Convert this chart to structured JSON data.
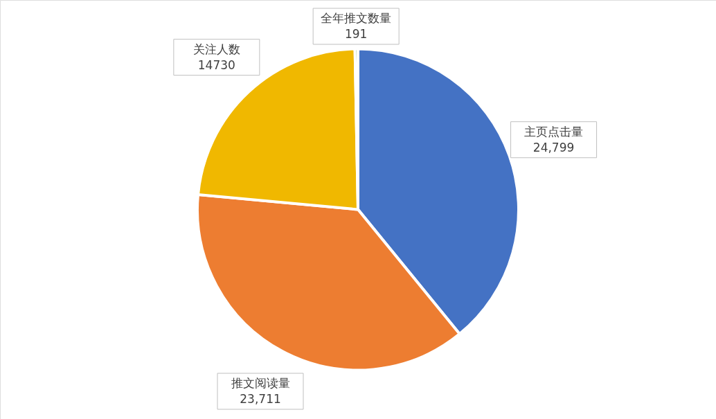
{
  "chart_data": {
    "type": "pie",
    "categories": [
      "主页点击量",
      "推文阅读量",
      "关注人数",
      "全年推文数量"
    ],
    "values": [
      24799,
      23711,
      14730,
      191
    ],
    "value_labels": [
      "24,799",
      "23,711",
      "14730",
      "191"
    ],
    "colors": [
      "#4472c4",
      "#ed7d31",
      "#f0b800",
      "#70ad47"
    ]
  }
}
